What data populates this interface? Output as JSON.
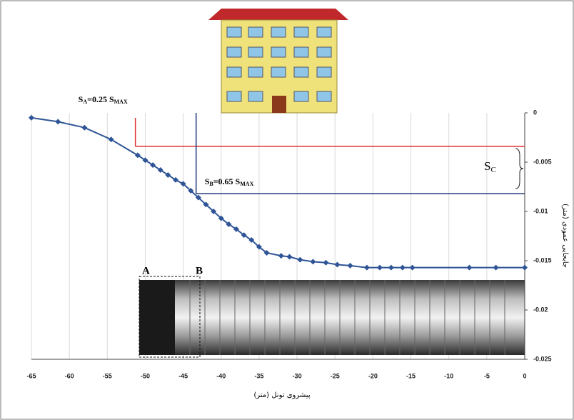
{
  "chart_data": {
    "type": "line",
    "x_label": "پیشروی تونل (متر)",
    "y_label": "جابجایی عمودی (متر)",
    "x": [
      -65,
      -61.5,
      -58,
      -54.5,
      -51,
      -50,
      -49,
      -48,
      -47,
      -46,
      -45,
      -44,
      -43,
      -42,
      -41,
      -40,
      -39,
      -38,
      -37,
      -36,
      -35,
      -34,
      -32.1,
      -31,
      -29.6,
      -27.9,
      -26.2,
      -24.7,
      -23,
      -20.8,
      -19.1,
      -17.6,
      -16.1,
      -14.8,
      -7.3,
      -3.8,
      0
    ],
    "values": [
      -0.0005,
      -0.0009,
      -0.0015,
      -0.0027,
      -0.0043,
      -0.0048,
      -0.0053,
      -0.0058,
      -0.0063,
      -0.0068,
      -0.0072,
      -0.0079,
      -0.0086,
      -0.0093,
      -0.01,
      -0.0107,
      -0.0113,
      -0.0118,
      -0.0124,
      -0.0129,
      -0.0136,
      -0.0142,
      -0.0145,
      -0.0146,
      -0.0149,
      -0.0151,
      -0.0152,
      -0.0154,
      -0.0155,
      -0.0157,
      -0.0157,
      -0.0157,
      -0.0157,
      -0.0157,
      -0.0157,
      -0.0157,
      -0.0157
    ],
    "color": "#2f5597",
    "xlim": [
      -65,
      0
    ],
    "xticks": [
      -65,
      -60,
      -55,
      -50,
      -45,
      -40,
      -35,
      -30,
      -25,
      -20,
      -15,
      -10,
      -5,
      0
    ],
    "ylim": [
      -0.025,
      0
    ],
    "yticks": [
      0,
      -0.005,
      -0.01,
      -0.015,
      -0.02,
      -0.025
    ],
    "grid": true,
    "annotations": [
      {
        "parts": [
          "S",
          "A",
          "=0.25 S",
          "MAX"
        ],
        "x": -51.3,
        "y": -0.0034,
        "color": "#e03030"
      },
      {
        "parts": [
          "S",
          "B",
          "=0.65 S",
          "MAX"
        ],
        "x": -43.3,
        "y": -0.0082,
        "color": "#1f3a7a"
      }
    ],
    "sc_label": [
      "S",
      "C"
    ],
    "tunnel_labels": [
      "A",
      "B"
    ]
  }
}
